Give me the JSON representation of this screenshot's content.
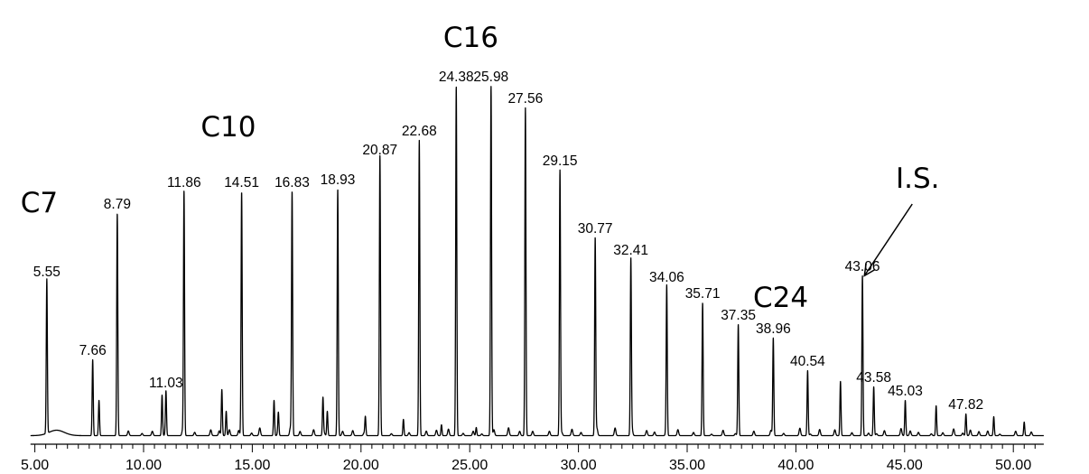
{
  "chart_data": {
    "type": "line",
    "title": "",
    "xlabel": "",
    "ylabel": "",
    "xlim": [
      4.8,
      51.4
    ],
    "x_ticks": [
      "5.00",
      "10.00",
      "15.00",
      "20.00",
      "25.00",
      "30.00",
      "35.00",
      "40.00",
      "45.00",
      "50.00"
    ],
    "grid": false,
    "colors": {
      "trace": "#000000",
      "text": "#000000"
    },
    "labeled_peaks": [
      {
        "label": "5.55",
        "x": 5.55,
        "y": 0.57
      },
      {
        "label": "7.66",
        "x": 7.66,
        "y": 0.28
      },
      {
        "label": "8.79",
        "x": 8.79,
        "y": 0.82
      },
      {
        "label": "11.03",
        "x": 11.03,
        "y": 0.16
      },
      {
        "label": "11.86",
        "x": 11.86,
        "y": 0.9
      },
      {
        "label": "14.51",
        "x": 14.51,
        "y": 0.9
      },
      {
        "label": "16.83",
        "x": 16.83,
        "y": 0.9
      },
      {
        "label": "18.93",
        "x": 18.93,
        "y": 0.91
      },
      {
        "label": "20.87",
        "x": 20.87,
        "y": 1.02
      },
      {
        "label": "22.68",
        "x": 22.68,
        "y": 1.09
      },
      {
        "label": "24.38",
        "x": 24.38,
        "y": 1.29
      },
      {
        "label": "25.98",
        "x": 25.98,
        "y": 1.29
      },
      {
        "label": "27.56",
        "x": 27.56,
        "y": 1.21
      },
      {
        "label": "29.15",
        "x": 29.15,
        "y": 0.98
      },
      {
        "label": "30.77",
        "x": 30.77,
        "y": 0.73
      },
      {
        "label": "32.41",
        "x": 32.41,
        "y": 0.65
      },
      {
        "label": "34.06",
        "x": 34.06,
        "y": 0.55
      },
      {
        "label": "35.71",
        "x": 35.71,
        "y": 0.49
      },
      {
        "label": "37.35",
        "x": 37.35,
        "y": 0.41
      },
      {
        "label": "38.96",
        "x": 38.96,
        "y": 0.36
      },
      {
        "label": "40.54",
        "x": 40.54,
        "y": 0.24
      },
      {
        "label": "43.06",
        "x": 43.06,
        "y": 0.59
      },
      {
        "label": "43.58",
        "x": 43.58,
        "y": 0.18
      },
      {
        "label": "45.03",
        "x": 45.03,
        "y": 0.13
      },
      {
        "label": "47.82",
        "x": 47.82,
        "y": 0.08
      }
    ],
    "minor_peaks": [
      {
        "x": 7.95,
        "y": 0.13
      },
      {
        "x": 10.85,
        "y": 0.15
      },
      {
        "x": 13.6,
        "y": 0.17
      },
      {
        "x": 13.8,
        "y": 0.09
      },
      {
        "x": 16.0,
        "y": 0.13
      },
      {
        "x": 16.2,
        "y": 0.08
      },
      {
        "x": 18.25,
        "y": 0.14
      },
      {
        "x": 18.45,
        "y": 0.09
      },
      {
        "x": 20.2,
        "y": 0.07
      },
      {
        "x": 21.95,
        "y": 0.06
      },
      {
        "x": 23.7,
        "y": 0.04
      },
      {
        "x": 25.3,
        "y": 0.03
      },
      {
        "x": 42.05,
        "y": 0.2
      },
      {
        "x": 46.45,
        "y": 0.11
      },
      {
        "x": 49.1,
        "y": 0.07
      },
      {
        "x": 50.5,
        "y": 0.05
      }
    ],
    "annotations": [
      {
        "text": "C7",
        "x": 5.2,
        "y": 0.83
      },
      {
        "text": "C10",
        "x": 13.9,
        "y": 1.11
      },
      {
        "text": "C16",
        "x": 25.05,
        "y": 1.44
      },
      {
        "text": "C24",
        "x": 39.3,
        "y": 0.48
      },
      {
        "text": "I.S.",
        "x": 45.6,
        "y": 0.92,
        "arrow_to": {
          "x": 43.15,
          "y": 0.595
        }
      }
    ]
  }
}
